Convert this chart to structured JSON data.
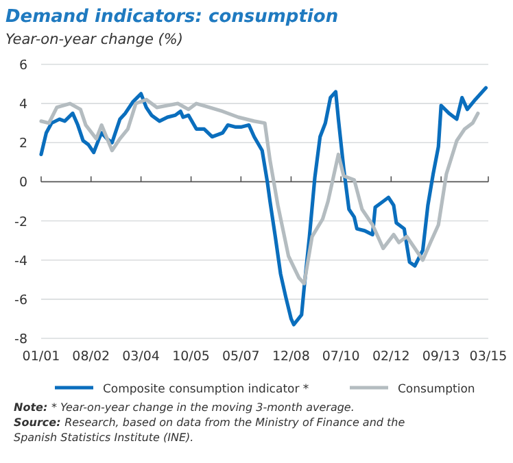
{
  "chart_data": {
    "type": "line",
    "title": "Demand indicators: consumption",
    "subtitle": "Year-on-year change (%)",
    "xlim": [
      "2001-01",
      "2015-03"
    ],
    "xticks": [
      {
        "value": "2001-01",
        "label": "01/01"
      },
      {
        "value": "2002-08",
        "label": "08/02"
      },
      {
        "value": "2004-03",
        "label": "03/04"
      },
      {
        "value": "2005-10",
        "label": "10/05"
      },
      {
        "value": "2007-05",
        "label": "05/07"
      },
      {
        "value": "2008-12",
        "label": "12/08"
      },
      {
        "value": "2010-07",
        "label": "07/10"
      },
      {
        "value": "2012-02",
        "label": "02/12"
      },
      {
        "value": "2013-09",
        "label": "09/13"
      },
      {
        "value": "2015-03",
        "label": "03/15"
      }
    ],
    "ylim": [
      -8,
      6
    ],
    "yticks": [
      -8,
      -6,
      -4,
      -2,
      0,
      2,
      4,
      6
    ],
    "grid": "y",
    "legend": "bottom",
    "marker": "none",
    "line_style": "solid",
    "series": [
      {
        "name": "Composite consumption indicator *",
        "color": "#0a6ebd",
        "x": [
          "2001-01",
          "2001-03",
          "2001-05",
          "2001-08",
          "2001-10",
          "2002-01",
          "2002-03",
          "2002-05",
          "2002-07",
          "2002-09",
          "2002-11",
          "2002-12",
          "2003-02",
          "2003-04",
          "2003-07",
          "2003-09",
          "2003-12",
          "2004-03",
          "2004-05",
          "2004-07",
          "2004-10",
          "2005-01",
          "2005-04",
          "2005-06",
          "2005-07",
          "2005-09",
          "2005-12",
          "2006-03",
          "2006-06",
          "2006-10",
          "2006-12",
          "2007-03",
          "2007-05",
          "2007-08",
          "2007-10",
          "2008-01",
          "2008-03",
          "2008-04",
          "2008-06",
          "2008-08",
          "2008-10",
          "2008-12",
          "2009-01",
          "2009-04",
          "2009-05",
          "2009-07",
          "2009-09",
          "2009-11",
          "2010-01",
          "2010-03",
          "2010-05",
          "2010-06",
          "2010-08",
          "2010-10",
          "2010-12",
          "2011-01",
          "2011-04",
          "2011-07",
          "2011-08",
          "2011-11",
          "2012-01",
          "2012-03",
          "2012-04",
          "2012-07",
          "2012-09",
          "2012-11",
          "2013-02",
          "2013-04",
          "2013-06",
          "2013-08",
          "2013-09",
          "2013-12",
          "2014-03",
          "2014-05",
          "2014-07",
          "2014-10",
          "2015-02"
        ],
        "values": [
          1.4,
          2.5,
          3.0,
          3.2,
          3.1,
          3.5,
          2.9,
          2.1,
          1.9,
          1.5,
          2.2,
          2.5,
          2.2,
          2.0,
          3.2,
          3.5,
          4.1,
          4.5,
          3.8,
          3.4,
          3.1,
          3.3,
          3.4,
          3.6,
          3.3,
          3.4,
          2.7,
          2.7,
          2.3,
          2.5,
          2.9,
          2.8,
          2.8,
          2.9,
          2.3,
          1.6,
          0,
          -1.0,
          -2.8,
          -4.7,
          -5.9,
          -7.0,
          -7.3,
          -6.8,
          -5.4,
          -2.8,
          0.2,
          2.3,
          3.0,
          4.3,
          4.6,
          3.2,
          0.7,
          -1.4,
          -1.8,
          -2.4,
          -2.5,
          -2.7,
          -1.3,
          -1.0,
          -0.8,
          -1.2,
          -2.1,
          -2.4,
          -4.1,
          -4.3,
          -3.5,
          -1.2,
          0.4,
          1.8,
          3.9,
          3.5,
          3.2,
          4.3,
          3.7,
          4.2,
          4.8
        ]
      },
      {
        "name": "Consumption",
        "color": "#b4bcc0",
        "x": [
          "2001-01",
          "2001-04",
          "2001-07",
          "2001-12",
          "2002-04",
          "2002-06",
          "2002-10",
          "2002-12",
          "2003-04",
          "2003-07",
          "2003-10",
          "2004-01",
          "2004-05",
          "2004-09",
          "2005-01",
          "2005-05",
          "2005-09",
          "2005-12",
          "2006-05",
          "2006-10",
          "2007-04",
          "2007-10",
          "2008-02",
          "2008-04",
          "2008-07",
          "2008-11",
          "2009-03",
          "2009-05",
          "2009-08",
          "2009-12",
          "2010-02",
          "2010-06",
          "2010-08",
          "2010-12",
          "2011-03",
          "2011-07",
          "2011-11",
          "2012-03",
          "2012-05",
          "2012-08",
          "2012-11",
          "2013-02",
          "2013-05",
          "2013-08",
          "2013-11",
          "2014-03",
          "2014-06",
          "2014-09",
          "2014-11"
        ],
        "values": [
          3.1,
          3.0,
          3.8,
          4.0,
          3.7,
          2.9,
          2.2,
          2.9,
          1.6,
          2.2,
          2.7,
          4.0,
          4.2,
          3.8,
          3.9,
          4.0,
          3.7,
          4.0,
          3.8,
          3.6,
          3.3,
          3.1,
          3.0,
          1.1,
          -1.2,
          -3.8,
          -4.9,
          -5.2,
          -2.8,
          -1.9,
          -1.0,
          1.4,
          0.3,
          0.1,
          -1.4,
          -2.2,
          -3.4,
          -2.7,
          -3.1,
          -2.8,
          -3.4,
          -4.0,
          -3.1,
          -2.2,
          0.4,
          2.1,
          2.7,
          3.0,
          3.5
        ]
      }
    ],
    "annotations": [
      "Note: * Year-on-year change in the moving 3-month average.",
      "Source: Research, based on data from the Ministry of Finance and the Spanish Statistics Institute (INE)."
    ]
  }
}
